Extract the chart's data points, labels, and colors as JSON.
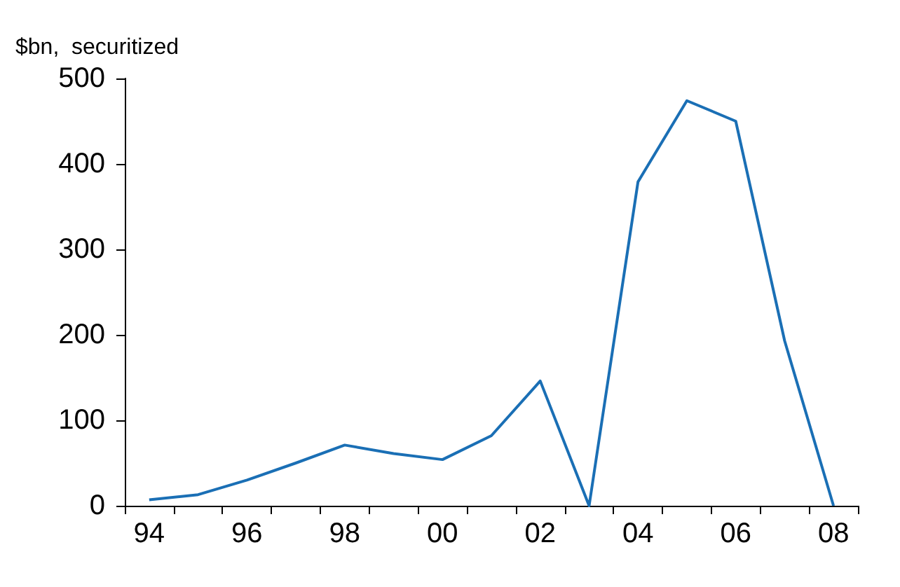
{
  "chart_data": {
    "type": "line",
    "ylabel": "$bn,  securitized",
    "categories": [
      "94",
      null,
      "96",
      null,
      "98",
      null,
      "00",
      null,
      "02",
      null,
      "04",
      null,
      "06",
      null,
      "08"
    ],
    "series": [
      {
        "color": "#1a6fb5",
        "values": [
          7,
          13,
          30,
          50,
          71,
          61,
          54,
          82,
          146,
          0,
          379,
          474,
          450,
          193,
          0
        ]
      }
    ],
    "ylim": [
      0,
      500
    ],
    "yticks": [
      0,
      100,
      200,
      300,
      400,
      500
    ],
    "marker": "none",
    "line_style": "solid"
  }
}
